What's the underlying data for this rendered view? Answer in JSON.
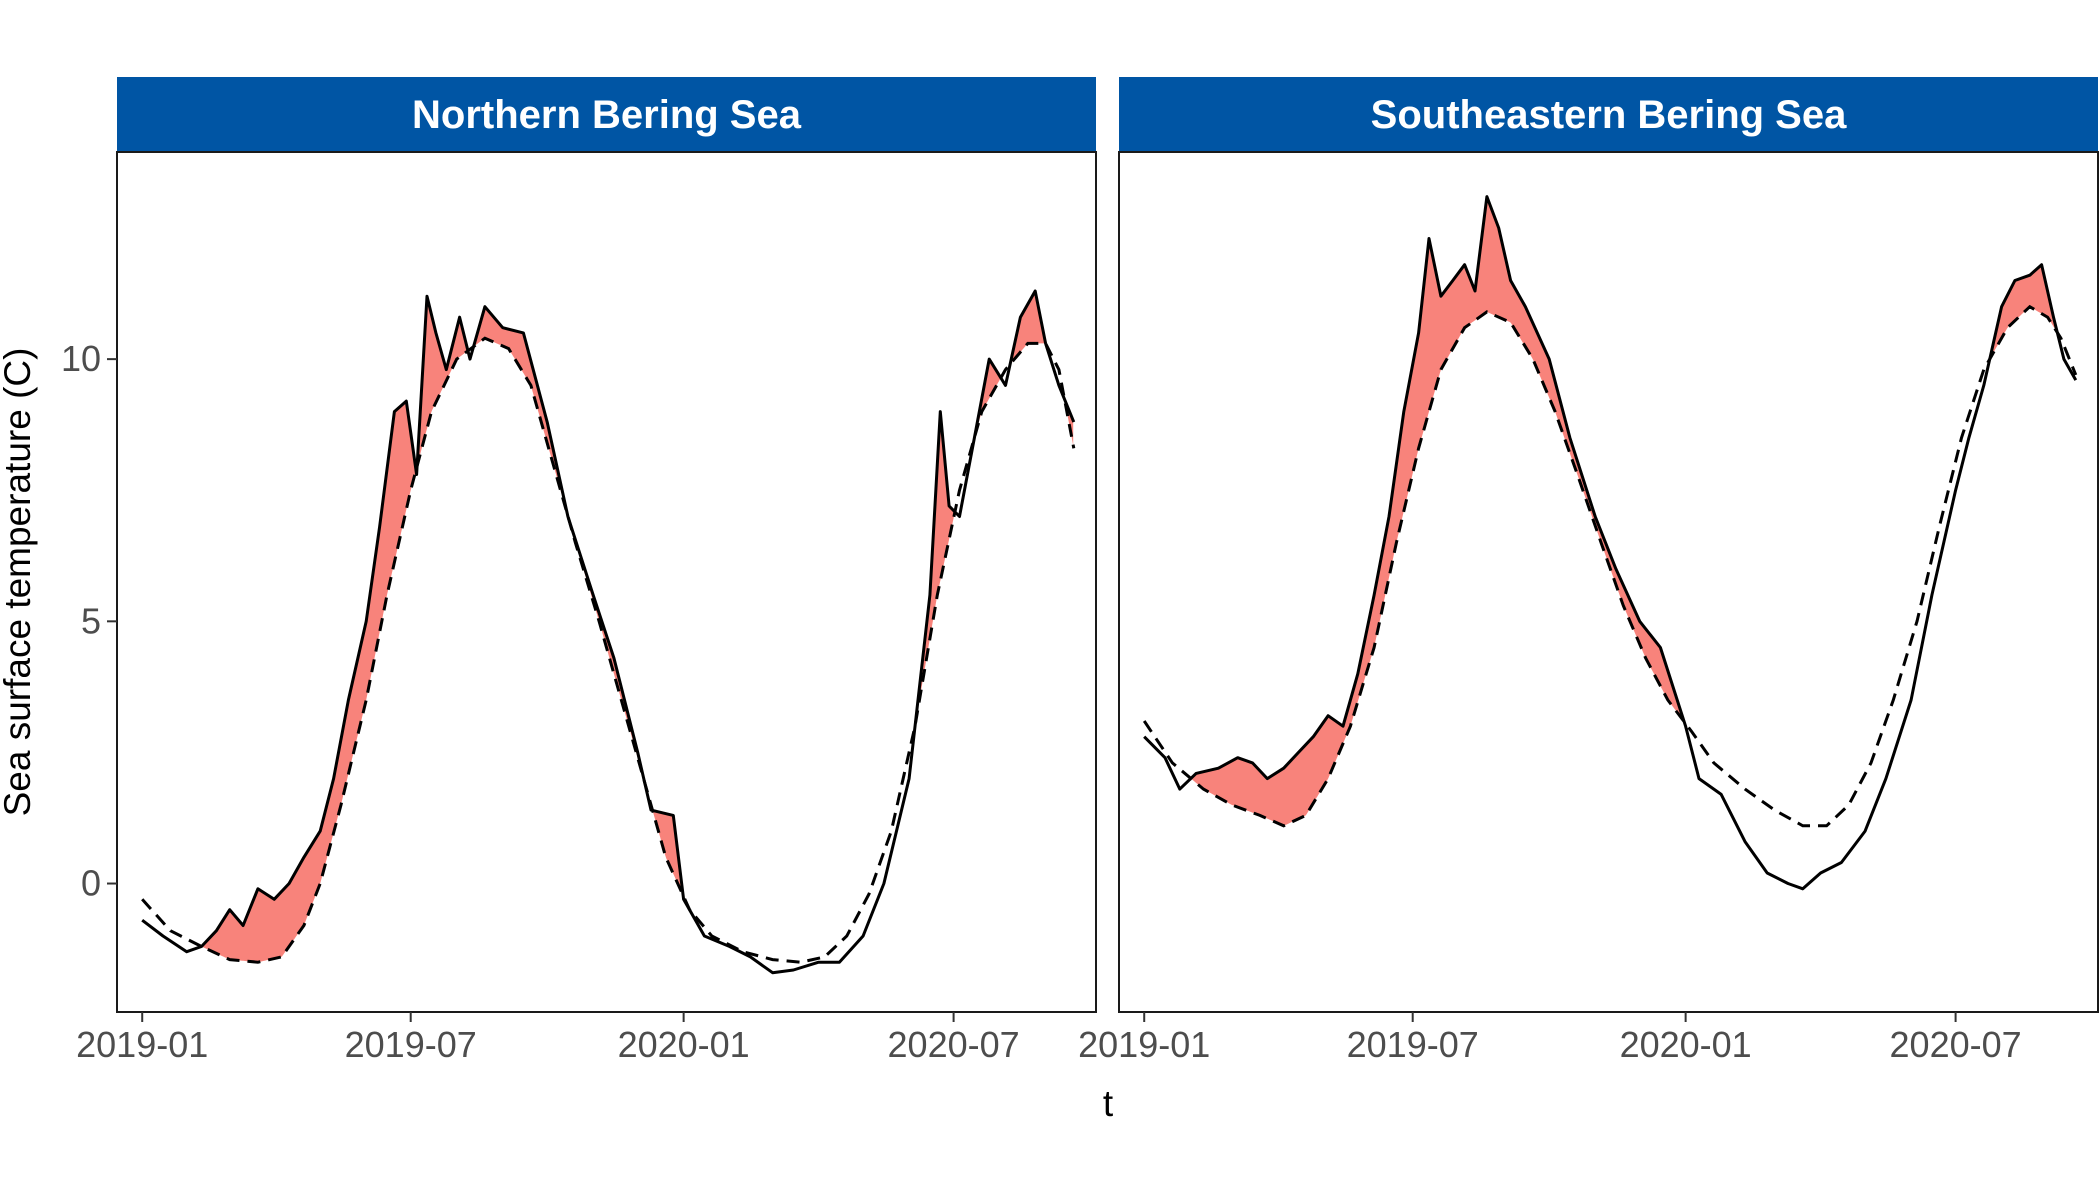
{
  "chart_data": {
    "type": "line",
    "xlabel": "t",
    "ylabel": "Sea surface temperature (C)",
    "xlim": [
      "2018-12-15",
      "2020-10-05"
    ],
    "ylim": [
      -2.45,
      13.95
    ],
    "x_ticks": [
      "2019-01",
      "2019-07",
      "2020-01",
      "2020-07"
    ],
    "y_ticks": [
      0,
      5,
      10
    ],
    "colors": {
      "strip": "#0055a4",
      "fill": "#f8837b",
      "line": "#000000"
    },
    "panels": [
      {
        "title": "Northern Bering Sea",
        "series": [
          {
            "style": "solid",
            "points": [
              [
                "2019-01-01",
                -0.7
              ],
              [
                "2019-01-15",
                -1.0
              ],
              [
                "2019-01-31",
                -1.3
              ],
              [
                "2019-02-10",
                -1.2
              ],
              [
                "2019-02-20",
                -0.9
              ],
              [
                "2019-03-01",
                -0.5
              ],
              [
                "2019-03-10",
                -0.8
              ],
              [
                "2019-03-20",
                -0.1
              ],
              [
                "2019-03-31",
                -0.3
              ],
              [
                "2019-04-10",
                0.0
              ],
              [
                "2019-04-20",
                0.5
              ],
              [
                "2019-05-01",
                1.0
              ],
              [
                "2019-05-10",
                2.0
              ],
              [
                "2019-05-20",
                3.5
              ],
              [
                "2019-06-01",
                5.0
              ],
              [
                "2019-06-10",
                6.8
              ],
              [
                "2019-06-20",
                9.0
              ],
              [
                "2019-06-28",
                9.2
              ],
              [
                "2019-07-05",
                7.8
              ],
              [
                "2019-07-12",
                11.2
              ],
              [
                "2019-07-18",
                10.5
              ],
              [
                "2019-07-25",
                9.8
              ],
              [
                "2019-08-03",
                10.8
              ],
              [
                "2019-08-10",
                10.0
              ],
              [
                "2019-08-20",
                11.0
              ],
              [
                "2019-09-01",
                10.6
              ],
              [
                "2019-09-15",
                10.5
              ],
              [
                "2019-10-01",
                8.8
              ],
              [
                "2019-10-15",
                7.0
              ],
              [
                "2019-11-01",
                5.5
              ],
              [
                "2019-11-15",
                4.3
              ],
              [
                "2019-12-01",
                2.5
              ],
              [
                "2019-12-10",
                1.4
              ],
              [
                "2019-12-25",
                1.3
              ],
              [
                "2020-01-01",
                -0.3
              ],
              [
                "2020-01-15",
                -1.0
              ],
              [
                "2020-02-01",
                -1.2
              ],
              [
                "2020-02-15",
                -1.4
              ],
              [
                "2020-03-01",
                -1.7
              ],
              [
                "2020-03-15",
                -1.65
              ],
              [
                "2020-04-01",
                -1.5
              ],
              [
                "2020-04-15",
                -1.5
              ],
              [
                "2020-05-01",
                -1.0
              ],
              [
                "2020-05-15",
                0.0
              ],
              [
                "2020-06-01",
                2.0
              ],
              [
                "2020-06-15",
                5.5
              ],
              [
                "2020-06-22",
                9.0
              ],
              [
                "2020-06-28",
                7.2
              ],
              [
                "2020-07-05",
                7.0
              ],
              [
                "2020-07-15",
                8.5
              ],
              [
                "2020-07-25",
                10.0
              ],
              [
                "2020-08-05",
                9.5
              ],
              [
                "2020-08-15",
                10.8
              ],
              [
                "2020-08-25",
                11.3
              ],
              [
                "2020-09-01",
                10.3
              ],
              [
                "2020-09-10",
                9.5
              ],
              [
                "2020-09-20",
                8.8
              ]
            ]
          },
          {
            "style": "dashed",
            "points": [
              [
                "2019-01-01",
                -0.3
              ],
              [
                "2019-01-20",
                -0.9
              ],
              [
                "2019-02-10",
                -1.2
              ],
              [
                "2019-03-01",
                -1.45
              ],
              [
                "2019-03-20",
                -1.5
              ],
              [
                "2019-04-05",
                -1.4
              ],
              [
                "2019-04-20",
                -0.8
              ],
              [
                "2019-05-01",
                0.0
              ],
              [
                "2019-05-15",
                1.5
              ],
              [
                "2019-06-01",
                3.5
              ],
              [
                "2019-06-15",
                5.5
              ],
              [
                "2019-07-01",
                7.5
              ],
              [
                "2019-07-15",
                9.0
              ],
              [
                "2019-08-01",
                10.0
              ],
              [
                "2019-08-20",
                10.4
              ],
              [
                "2019-09-05",
                10.2
              ],
              [
                "2019-09-20",
                9.5
              ],
              [
                "2019-10-05",
                8.0
              ],
              [
                "2019-10-20",
                6.5
              ],
              [
                "2019-11-05",
                5.0
              ],
              [
                "2019-11-20",
                3.5
              ],
              [
                "2019-12-05",
                2.0
              ],
              [
                "2019-12-20",
                0.5
              ],
              [
                "2020-01-05",
                -0.5
              ],
              [
                "2020-01-20",
                -1.0
              ],
              [
                "2020-02-10",
                -1.3
              ],
              [
                "2020-03-01",
                -1.45
              ],
              [
                "2020-03-20",
                -1.5
              ],
              [
                "2020-04-05",
                -1.4
              ],
              [
                "2020-04-20",
                -1.0
              ],
              [
                "2020-05-05",
                -0.2
              ],
              [
                "2020-05-20",
                1.0
              ],
              [
                "2020-06-05",
                3.0
              ],
              [
                "2020-06-20",
                5.5
              ],
              [
                "2020-07-05",
                7.5
              ],
              [
                "2020-07-20",
                9.0
              ],
              [
                "2020-08-05",
                9.8
              ],
              [
                "2020-08-20",
                10.3
              ],
              [
                "2020-09-01",
                10.3
              ],
              [
                "2020-09-10",
                9.8
              ],
              [
                "2020-09-20",
                8.3
              ]
            ]
          }
        ]
      },
      {
        "title": "Southeastern Bering Sea",
        "series": [
          {
            "style": "solid",
            "points": [
              [
                "2019-01-01",
                2.8
              ],
              [
                "2019-01-15",
                2.4
              ],
              [
                "2019-01-25",
                1.8
              ],
              [
                "2019-02-05",
                2.1
              ],
              [
                "2019-02-20",
                2.2
              ],
              [
                "2019-03-05",
                2.4
              ],
              [
                "2019-03-15",
                2.3
              ],
              [
                "2019-03-25",
                2.0
              ],
              [
                "2019-04-05",
                2.2
              ],
              [
                "2019-04-15",
                2.5
              ],
              [
                "2019-04-25",
                2.8
              ],
              [
                "2019-05-05",
                3.2
              ],
              [
                "2019-05-15",
                3.0
              ],
              [
                "2019-05-25",
                4.0
              ],
              [
                "2019-06-05",
                5.5
              ],
              [
                "2019-06-15",
                7.0
              ],
              [
                "2019-06-25",
                9.0
              ],
              [
                "2019-07-05",
                10.5
              ],
              [
                "2019-07-12",
                12.3
              ],
              [
                "2019-07-20",
                11.2
              ],
              [
                "2019-07-28",
                11.5
              ],
              [
                "2019-08-05",
                11.8
              ],
              [
                "2019-08-12",
                11.3
              ],
              [
                "2019-08-20",
                13.1
              ],
              [
                "2019-08-28",
                12.5
              ],
              [
                "2019-09-05",
                11.5
              ],
              [
                "2019-09-15",
                11.0
              ],
              [
                "2019-10-01",
                10.0
              ],
              [
                "2019-10-15",
                8.5
              ],
              [
                "2019-11-01",
                7.0
              ],
              [
                "2019-11-15",
                6.0
              ],
              [
                "2019-12-01",
                5.0
              ],
              [
                "2019-12-15",
                4.5
              ],
              [
                "2020-01-01",
                3.0
              ],
              [
                "2020-01-10",
                2.0
              ],
              [
                "2020-01-25",
                1.7
              ],
              [
                "2020-02-10",
                0.8
              ],
              [
                "2020-02-25",
                0.2
              ],
              [
                "2020-03-10",
                0.0
              ],
              [
                "2020-03-20",
                -0.1
              ],
              [
                "2020-04-01",
                0.2
              ],
              [
                "2020-04-15",
                0.4
              ],
              [
                "2020-05-01",
                1.0
              ],
              [
                "2020-05-15",
                2.0
              ],
              [
                "2020-06-01",
                3.5
              ],
              [
                "2020-06-15",
                5.5
              ],
              [
                "2020-07-01",
                7.5
              ],
              [
                "2020-07-10",
                8.5
              ],
              [
                "2020-07-20",
                9.5
              ],
              [
                "2020-08-01",
                11.0
              ],
              [
                "2020-08-10",
                11.5
              ],
              [
                "2020-08-20",
                11.6
              ],
              [
                "2020-08-28",
                11.8
              ],
              [
                "2020-09-05",
                10.8
              ],
              [
                "2020-09-12",
                10.0
              ],
              [
                "2020-09-20",
                9.6
              ]
            ]
          },
          {
            "style": "dashed",
            "points": [
              [
                "2019-01-01",
                3.1
              ],
              [
                "2019-01-20",
                2.3
              ],
              [
                "2019-02-10",
                1.8
              ],
              [
                "2019-03-01",
                1.5
              ],
              [
                "2019-03-20",
                1.3
              ],
              [
                "2019-04-05",
                1.1
              ],
              [
                "2019-04-20",
                1.3
              ],
              [
                "2019-05-05",
                2.0
              ],
              [
                "2019-05-20",
                3.0
              ],
              [
                "2019-06-05",
                4.5
              ],
              [
                "2019-06-20",
                6.5
              ],
              [
                "2019-07-05",
                8.3
              ],
              [
                "2019-07-20",
                9.8
              ],
              [
                "2019-08-05",
                10.6
              ],
              [
                "2019-08-20",
                10.9
              ],
              [
                "2019-09-05",
                10.7
              ],
              [
                "2019-09-20",
                10.0
              ],
              [
                "2019-10-05",
                9.0
              ],
              [
                "2019-10-20",
                7.8
              ],
              [
                "2019-11-05",
                6.5
              ],
              [
                "2019-11-20",
                5.3
              ],
              [
                "2019-12-05",
                4.3
              ],
              [
                "2019-12-20",
                3.5
              ],
              [
                "2020-01-05",
                2.9
              ],
              [
                "2020-01-20",
                2.3
              ],
              [
                "2020-02-10",
                1.8
              ],
              [
                "2020-03-01",
                1.4
              ],
              [
                "2020-03-20",
                1.1
              ],
              [
                "2020-04-05",
                1.1
              ],
              [
                "2020-04-20",
                1.5
              ],
              [
                "2020-05-05",
                2.3
              ],
              [
                "2020-05-20",
                3.5
              ],
              [
                "2020-06-05",
                5.0
              ],
              [
                "2020-06-20",
                6.8
              ],
              [
                "2020-07-05",
                8.5
              ],
              [
                "2020-07-20",
                9.8
              ],
              [
                "2020-08-05",
                10.6
              ],
              [
                "2020-08-20",
                11.0
              ],
              [
                "2020-09-01",
                10.8
              ],
              [
                "2020-09-10",
                10.4
              ],
              [
                "2020-09-20",
                9.7
              ]
            ]
          }
        ]
      }
    ]
  }
}
